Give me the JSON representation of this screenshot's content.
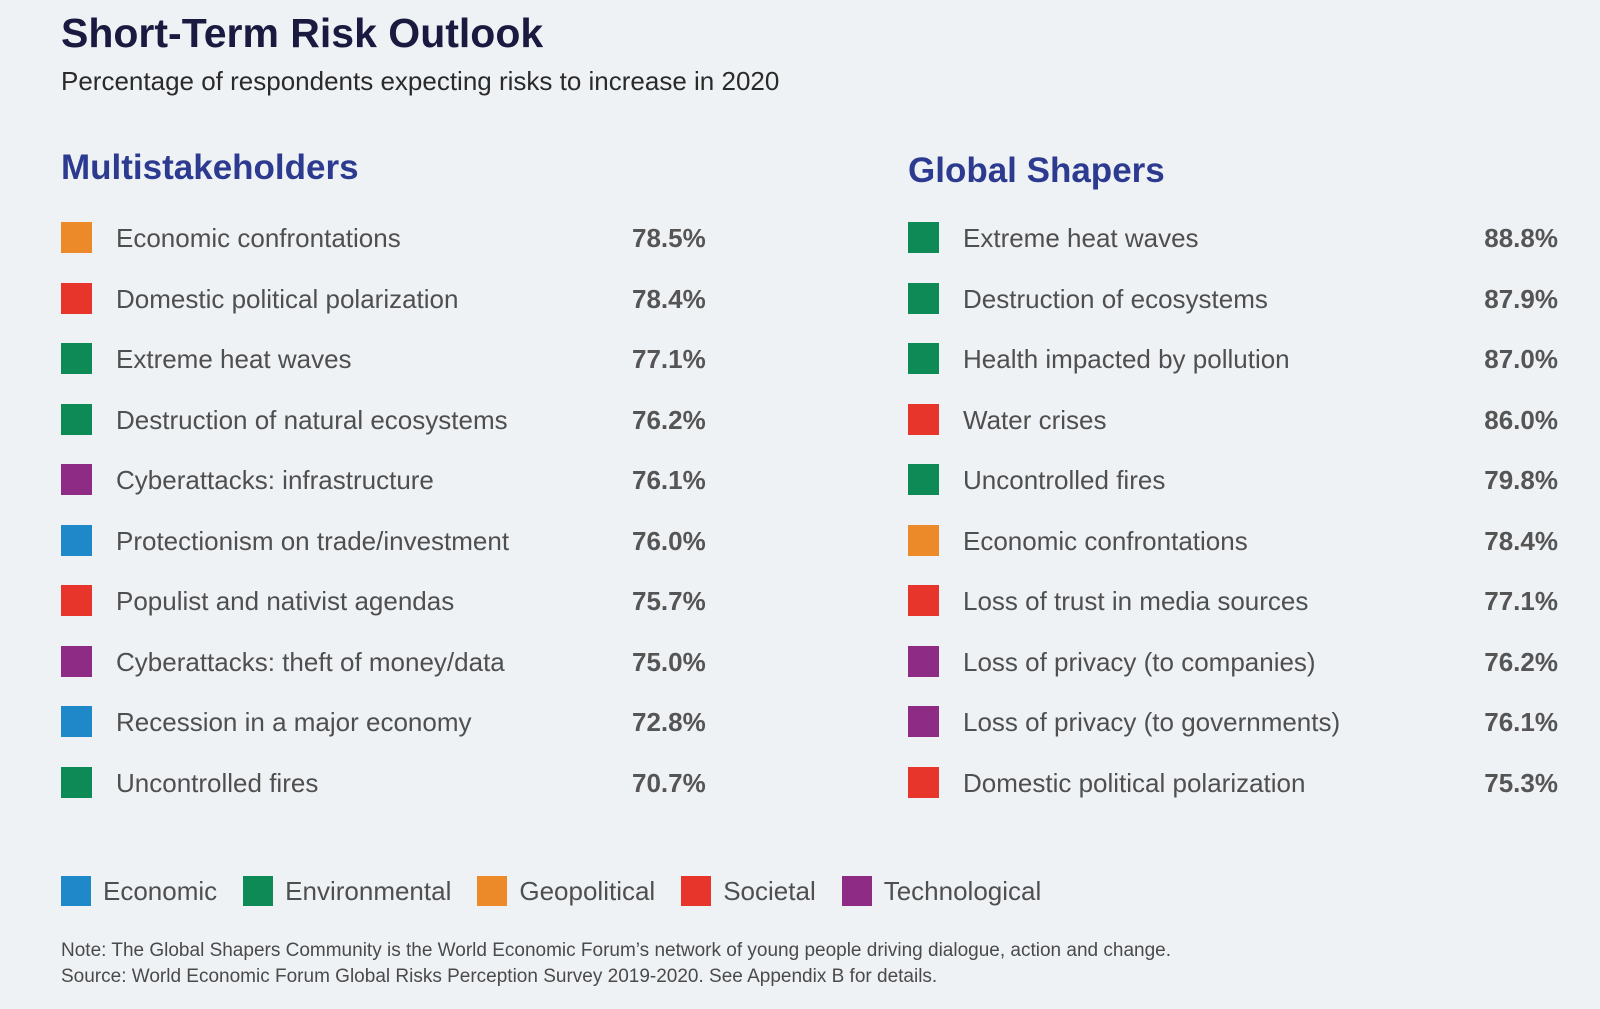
{
  "title": "Short-Term Risk Outlook",
  "subtitle": "Percentage of respondents expecting risks to increase in 2020",
  "categories": {
    "Economic": "#1e88c8",
    "Environmental": "#0e8a57",
    "Geopolitical": "#ec8a2a",
    "Societal": "#e8352b",
    "Technological": "#8e2b85"
  },
  "multistakeholders": {
    "heading": "Multistakeholders",
    "items": [
      {
        "label": "Economic confrontations",
        "value": "78.5%",
        "category": "Geopolitical"
      },
      {
        "label": "Domestic political polarization",
        "value": "78.4%",
        "category": "Societal"
      },
      {
        "label": "Extreme heat waves",
        "value": "77.1%",
        "category": "Environmental"
      },
      {
        "label": "Destruction of natural ecosystems",
        "value": "76.2%",
        "category": "Environmental"
      },
      {
        "label": "Cyberattacks: infrastructure",
        "value": "76.1%",
        "category": "Technological"
      },
      {
        "label": "Protectionism on trade/investment",
        "value": "76.0%",
        "category": "Economic"
      },
      {
        "label": "Populist and nativist agendas",
        "value": "75.7%",
        "category": "Societal"
      },
      {
        "label": "Cyberattacks: theft of money/data",
        "value": "75.0%",
        "category": "Technological"
      },
      {
        "label": "Recession in a major economy",
        "value": "72.8%",
        "category": "Economic"
      },
      {
        "label": "Uncontrolled fires",
        "value": "70.7%",
        "category": "Environmental"
      }
    ]
  },
  "global_shapers": {
    "heading": "Global Shapers",
    "items": [
      {
        "label": "Extreme heat waves",
        "value": "88.8%",
        "category": "Environmental"
      },
      {
        "label": "Destruction of ecosystems",
        "value": "87.9%",
        "category": "Environmental"
      },
      {
        "label": "Health impacted by pollution",
        "value": "87.0%",
        "category": "Environmental"
      },
      {
        "label": "Water crises",
        "value": "86.0%",
        "category": "Societal"
      },
      {
        "label": "Uncontrolled fires",
        "value": "79.8%",
        "category": "Environmental"
      },
      {
        "label": "Economic confrontations",
        "value": "78.4%",
        "category": "Geopolitical"
      },
      {
        "label": "Loss of trust in media sources",
        "value": "77.1%",
        "category": "Societal"
      },
      {
        "label": "Loss of privacy (to companies)",
        "value": "76.2%",
        "category": "Technological"
      },
      {
        "label": "Loss of privacy (to governments)",
        "value": "76.1%",
        "category": "Technological"
      },
      {
        "label": "Domestic political polarization",
        "value": "75.3%",
        "category": "Societal"
      }
    ]
  },
  "legend": [
    "Economic",
    "Environmental",
    "Geopolitical",
    "Societal",
    "Technological"
  ],
  "note": "Note: The Global Shapers Community is the World Economic Forum’s network of young people driving dialogue, action and change.",
  "source": "Source: World Economic Forum Global Risks Perception Survey 2019-2020. See Appendix B for details."
}
